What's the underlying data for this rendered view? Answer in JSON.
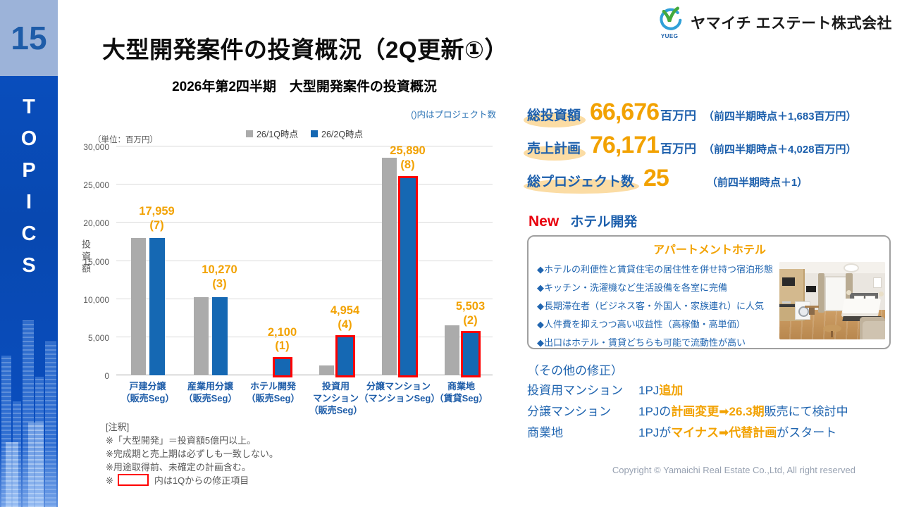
{
  "sidebar": {
    "page_number": "15",
    "topics_label": "TOPICS"
  },
  "header": {
    "title": "大型開発案件の投資概況（2Q更新①）",
    "company_name": "ヤマイチ エステート株式会社",
    "logo_monogram": "YUEG"
  },
  "chart_data": {
    "type": "bar",
    "title": "2026年第2四半期　大型開発案件の投資概況",
    "note": "()内はプロジェクト数",
    "unit_label": "（単位：百万円）",
    "yaxis_label": "投資額",
    "ylim": [
      0,
      30000
    ],
    "ytick_step": 5000,
    "grid": true,
    "legend_position": "top",
    "categories": [
      "戸建分譲\n（販売Seg）",
      "産業用分譲\n（販売Seg）",
      "ホテル開発\n（販売Seg）",
      "投資用\nマンション\n（販売Seg）",
      "分譲マンション\n（マンションSeg）",
      "商業地\n（賃貸Seg）"
    ],
    "series": [
      {
        "name": "26/1Q時点",
        "color": "#ABABAB",
        "values": [
          17959,
          10270,
          0,
          1300,
          28500,
          6600
        ],
        "values_note": "26/1Q bars are unlabeled in the chart; values estimated from bar heights"
      },
      {
        "name": "26/2Q時点",
        "color": "#1568B3",
        "values": [
          17959,
          10270,
          2100,
          4954,
          25890,
          5503
        ]
      }
    ],
    "value_labels": [
      {
        "value": "17,959",
        "projects": "(7)"
      },
      {
        "value": "10,270",
        "projects": "(3)"
      },
      {
        "value": "2,100",
        "projects": "(1)"
      },
      {
        "value": "4,954",
        "projects": "(4)"
      },
      {
        "value": "25,890",
        "projects": "(8)"
      },
      {
        "value": "5,503",
        "projects": "(2)"
      }
    ],
    "modified_from_1q": [
      false,
      false,
      true,
      true,
      true,
      true
    ]
  },
  "notes": {
    "heading": "[注釈]",
    "lines": [
      "※「大型開発」＝投資額5億円以上。",
      "※完成期と売上期は必ずしも一致しない。",
      "※用途取得前、未確定の計画含む。"
    ],
    "red_box_note": {
      "prefix": "※",
      "suffix": "内は1Qからの修正項目"
    }
  },
  "stats": [
    {
      "label": "総投資額",
      "value": "66,676",
      "unit": "百万円",
      "delta": "（前四半期時点＋1,683百万円）"
    },
    {
      "label": "売上計画",
      "value": "76,171",
      "unit": "百万円",
      "delta": "（前四半期時点＋4,028百万円）"
    },
    {
      "label": "総プロジェクト数",
      "value": "25",
      "unit": "",
      "delta": "（前四半期時点＋1）"
    }
  ],
  "new_section": {
    "badge": "New",
    "heading": "ホテル開発",
    "box_title": "アパートメントホテル",
    "bullets": [
      "◆ホテルの利便性と賃貸住宅の居住性を併せ持つ宿泊形態",
      "◆キッチン・洗濯機など生活設備を各室に完備",
      "◆長期滞在者（ビジネス客・外国人・家族連れ）に人気",
      "◆人件費を抑えつつ高い収益性（高稼働・高単価）",
      "◆出口はホテル・賃貸どちらも可能で流動性が高い"
    ]
  },
  "revisions": {
    "heading": "（その他の修正）",
    "rows": [
      {
        "label": "投資用マンション",
        "parts": [
          {
            "t": "1PJ",
            "hl": false
          },
          {
            "t": "追加",
            "hl": true
          }
        ]
      },
      {
        "label": "分譲マンション",
        "parts": [
          {
            "t": "1PJの",
            "hl": false
          },
          {
            "t": "計画変更➡26.3期",
            "hl": true
          },
          {
            "t": "販売にて検討中",
            "hl": false
          }
        ]
      },
      {
        "label": "商業地",
        "parts": [
          {
            "t": "1PJが",
            "hl": false
          },
          {
            "t": "マイナス➡代替計画",
            "hl": true
          },
          {
            "t": "がスタート",
            "hl": false
          }
        ]
      }
    ]
  },
  "footer": {
    "copyright": "Copyright © Yamaichi Real Estate Co.,Ltd, All right reserved"
  },
  "colors": {
    "accent_orange": "#F2A202",
    "text_blue": "#2065B0",
    "bar_blue": "#1568B3",
    "bar_gray": "#ABABAB",
    "modified_outline_red": "#FF0000",
    "sidebar_blue": "#0A50C2",
    "sidebar_light_blue": "#9CB3D9",
    "label_highlight_peach": "#FBDCA4"
  }
}
